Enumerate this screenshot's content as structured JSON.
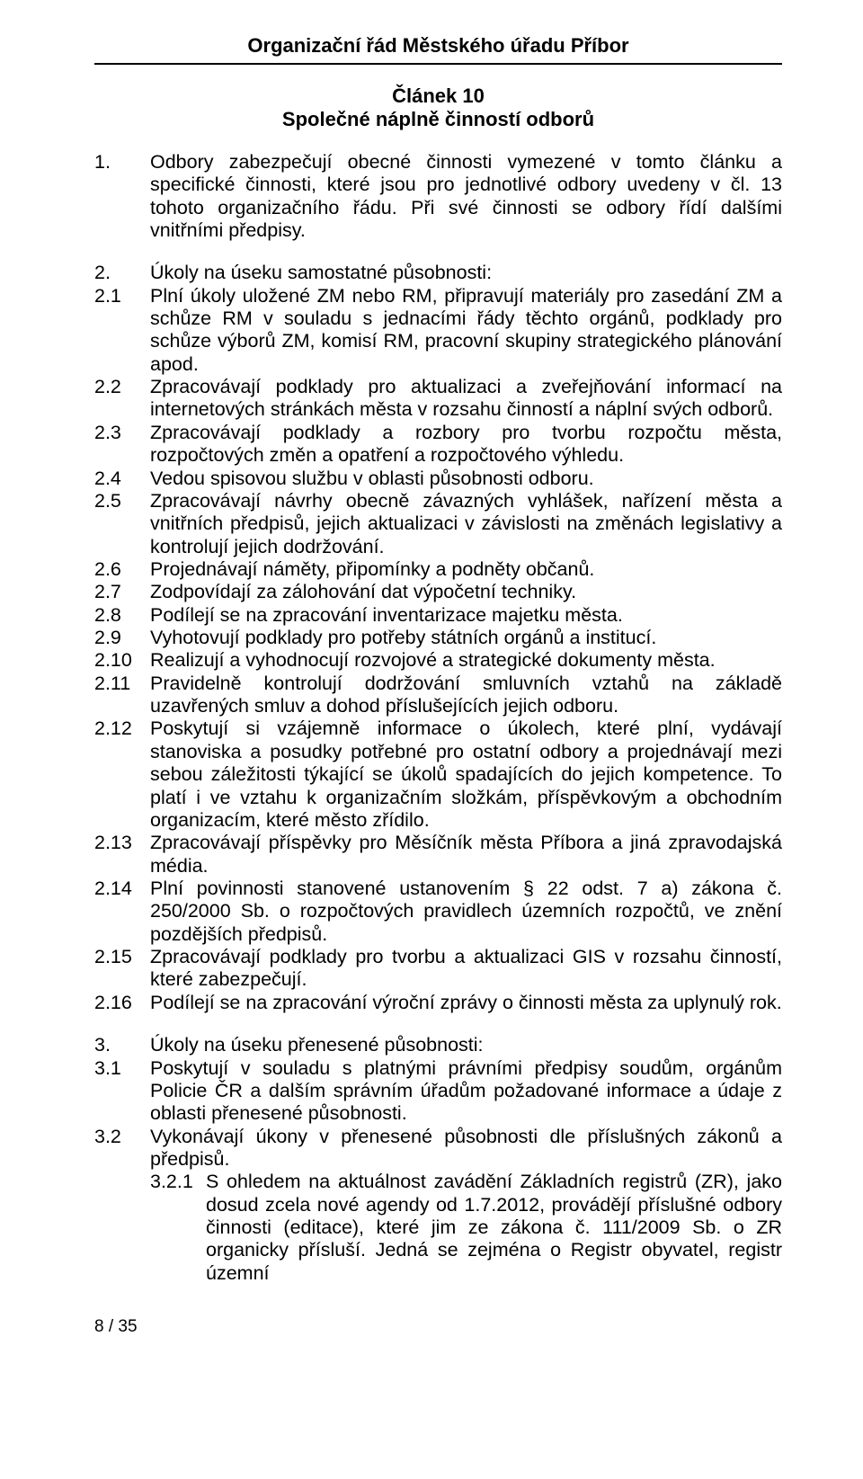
{
  "colors": {
    "text": "#000000",
    "background": "#ffffff",
    "rule": "#000000"
  },
  "typography": {
    "family": "Arial",
    "body_size_pt": 16,
    "heading_size_pt": 16,
    "heading_weight": "bold"
  },
  "header": {
    "title": "Organizační řád Městského úřadu Příbor"
  },
  "article": {
    "number": "Článek 10",
    "title": "Společné náplně činností odborů"
  },
  "intro": {
    "number": "1.",
    "text": "Odbory zabezpečují obecné činnosti vymezené v tomto článku a specifické činnosti, které jsou pro jednotlivé odbory uvedeny v čl. 13 tohoto organizačního řádu. Při své činnosti se odbory řídí dalšími vnitřními předpisy."
  },
  "section2": {
    "number": "2.",
    "title": "Úkoly na úseku samostatné působnosti:",
    "items": [
      {
        "n": "2.1",
        "t": "Plní úkoly uložené ZM nebo RM, připravují materiály pro zasedání ZM a schůze RM v souladu s jednacími řády těchto orgánů, podklady pro schůze výborů ZM, komisí RM, pracovní skupiny strategického plánování apod."
      },
      {
        "n": "2.2",
        "t": "Zpracovávají podklady pro aktualizaci a zveřejňování informací na internetových stránkách města v rozsahu činností a náplní svých odborů."
      },
      {
        "n": "2.3",
        "t": "Zpracovávají podklady a rozbory pro tvorbu rozpočtu města, rozpočtových změn a opatření a rozpočtového výhledu."
      },
      {
        "n": "2.4",
        "t": "Vedou spisovou službu v oblasti působnosti odboru."
      },
      {
        "n": "2.5",
        "t": "Zpracovávají návrhy obecně závazných vyhlášek, nařízení města a vnitřních předpisů, jejich aktualizaci v závislosti na změnách legislativy a kontrolují jejich dodržování."
      },
      {
        "n": "2.6",
        "t": "Projednávají náměty, připomínky a podněty občanů."
      },
      {
        "n": "2.7",
        "t": "Zodpovídají za zálohování dat výpočetní techniky."
      },
      {
        "n": "2.8",
        "t": "Podílejí se na zpracování inventarizace majetku města."
      },
      {
        "n": "2.9",
        "t": "Vyhotovují podklady pro potřeby státních orgánů a institucí."
      },
      {
        "n": "2.10",
        "t": "Realizují a vyhodnocují rozvojové a strategické dokumenty města."
      },
      {
        "n": "2.11",
        "t": "Pravidelně kontrolují dodržování smluvních vztahů na základě uzavřených smluv a dohod příslušejících jejich odboru."
      },
      {
        "n": "2.12",
        "t": "Poskytují si vzájemně informace o úkolech, které plní, vydávají stanoviska a posudky potřebné pro ostatní odbory a projednávají mezi sebou záležitosti týkající se úkolů spadajících do jejich kompetence. To platí i ve vztahu k organizačním složkám, příspěvkovým a obchodním organizacím, které město zřídilo."
      },
      {
        "n": "2.13",
        "t": "Zpracovávají příspěvky pro Měsíčník města Příbora a jiná zpravodajská média."
      },
      {
        "n": "2.14",
        "t": "Plní povinnosti stanovené ustanovením § 22 odst. 7 a) zákona č. 250/2000 Sb. o rozpočtových pravidlech územních rozpočtů, ve znění pozdějších předpisů."
      },
      {
        "n": "2.15",
        "t": "Zpracovávají podklady pro tvorbu a aktualizaci GIS v rozsahu činností, které zabezpečují."
      },
      {
        "n": "2.16",
        "t": "Podílejí se na zpracování výroční zprávy o činnosti města za uplynulý rok."
      }
    ]
  },
  "section3": {
    "number": "3.",
    "title": "Úkoly na úseku přenesené působnosti:",
    "items": [
      {
        "n": "3.1",
        "t": "Poskytují v souladu s platnými právními předpisy soudům, orgánům Policie ČR a dalším správním úřadům požadované informace a údaje z oblasti přenesené působnosti."
      },
      {
        "n": "3.2",
        "t": "Vykonávají úkony v přenesené působnosti dle příslušných zákonů a předpisů."
      }
    ],
    "sub321": {
      "n": "3.2.1",
      "t": "S ohledem na aktuálnost zavádění Základních registrů (ZR), jako dosud zcela nové agendy od 1.7.2012, provádějí příslušné odbory činnosti (editace), které jim ze zákona č. 111/2009 Sb. o ZR organicky přísluší. Jedná se zejména o Registr obyvatel, registr územní"
    }
  },
  "footer": {
    "page": "8 / 35"
  }
}
